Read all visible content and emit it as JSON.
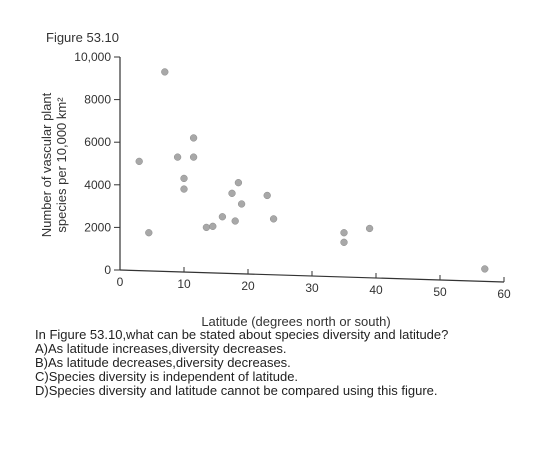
{
  "figure_label": "Figure 53.10",
  "chart_data": {
    "type": "scatter",
    "xlabel": "Latitude (degrees north or south)",
    "ylabel_line1": "Number of vascular plant",
    "ylabel_line2": "species per 10,000 km²",
    "xlim": [
      0,
      60
    ],
    "ylim": [
      0,
      10000
    ],
    "xticks": [
      "0",
      "10",
      "20",
      "30",
      "40",
      "50",
      "60"
    ],
    "xtick_values": [
      0,
      10,
      20,
      30,
      40,
      50,
      60
    ],
    "yticks": [
      "0",
      "2000",
      "4000",
      "6000",
      "8000",
      "10,000"
    ],
    "ytick_values": [
      0,
      2000,
      4000,
      6000,
      8000,
      10000
    ],
    "point_color": "#a8a8a8",
    "points": [
      {
        "x": 3,
        "y": 5100
      },
      {
        "x": 4.5,
        "y": 1750
      },
      {
        "x": 7,
        "y": 9300
      },
      {
        "x": 9,
        "y": 5300
      },
      {
        "x": 10,
        "y": 4300
      },
      {
        "x": 10,
        "y": 3800
      },
      {
        "x": 11.5,
        "y": 6200
      },
      {
        "x": 11.5,
        "y": 5300
      },
      {
        "x": 13.5,
        "y": 2000
      },
      {
        "x": 14.5,
        "y": 2050
      },
      {
        "x": 16,
        "y": 2500
      },
      {
        "x": 17.5,
        "y": 3600
      },
      {
        "x": 18,
        "y": 2300
      },
      {
        "x": 18.5,
        "y": 4100
      },
      {
        "x": 19,
        "y": 3100
      },
      {
        "x": 23,
        "y": 3500
      },
      {
        "x": 24,
        "y": 2400
      },
      {
        "x": 35,
        "y": 1750
      },
      {
        "x": 35,
        "y": 1300
      },
      {
        "x": 39,
        "y": 1950
      },
      {
        "x": 57,
        "y": 50
      }
    ]
  },
  "question": {
    "stem": "In Figure 53.10,what can be stated about species diversity and latitude?",
    "option_a": "A)As latitude increases,diversity decreases.",
    "option_b": "B)As latitude decreases,diversity decreases.",
    "option_c": "C)Species diversity is independent of latitude.",
    "option_d": "D)Species diversity and latitude cannot be compared using this figure."
  }
}
